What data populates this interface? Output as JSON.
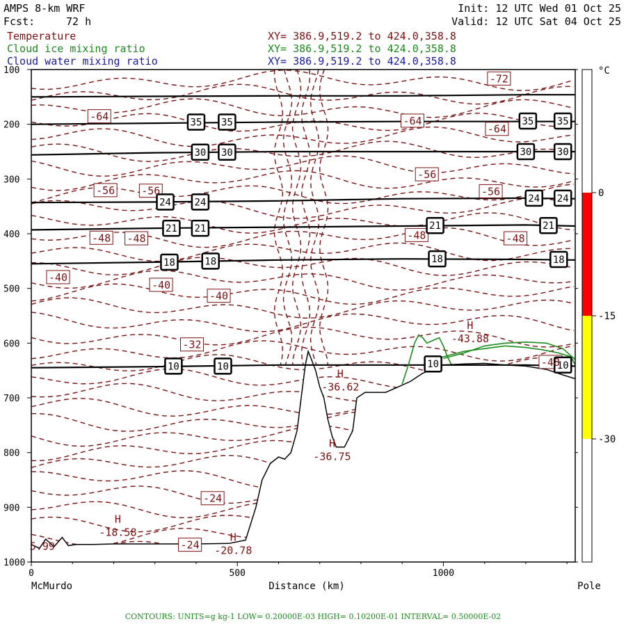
{
  "header": {
    "model": "AMPS 8-km WRF",
    "init": "Init: 12 UTC Wed 01 Oct 25",
    "fcst_label": "Fcst:",
    "fcst_value": "72 h",
    "valid": "Valid: 12 UTC Sat 04 Oct 25",
    "fields": [
      {
        "name": "Temperature",
        "xy": "XY= 386.9,519.2 to 424.0,358.8",
        "color": "#7a1010"
      },
      {
        "name": "Cloud ice mixing ratio",
        "xy": "XY= 386.9,519.2 to 424.0,358.8",
        "color": "#1a8a1a"
      },
      {
        "name": "Cloud water mixing ratio",
        "xy": "XY= 386.9,519.2 to 424.0,358.8",
        "color": "#1a1aa0"
      }
    ]
  },
  "footer": "CONTOURS:  UNITS=g kg-1  LOW= 0.20000E-03  HIGH= 0.10200E-01  INTERVAL=  0.50000E-02",
  "chart_data": {
    "type": "line",
    "xlabel": "Distance (km)",
    "ylabel": "",
    "xlim": [
      0,
      1320
    ],
    "ylim": [
      1000,
      100
    ],
    "x_ticks": [
      0,
      500,
      1000
    ],
    "y_ticks": [
      100,
      200,
      300,
      400,
      500,
      600,
      700,
      800,
      900,
      1000
    ],
    "x_endpoints": {
      "left": "McMurdo",
      "right": "Pole"
    },
    "colorbar": {
      "unit": "°C",
      "ticks": [
        0,
        -15,
        -30
      ],
      "bands": [
        {
          "from": 0,
          "to": -15,
          "color": "#ff0000"
        },
        {
          "from": -15,
          "to": -30,
          "color": "#ffff00"
        }
      ],
      "range": [
        15,
        -45
      ]
    },
    "terrain": {
      "x": [
        0,
        20,
        35,
        55,
        75,
        90,
        110,
        150,
        200,
        300,
        400,
        480,
        520,
        545,
        560,
        580,
        600,
        615,
        630,
        645,
        655,
        665,
        672,
        680,
        690,
        700,
        710,
        720,
        730,
        740,
        760,
        780,
        790,
        810,
        830,
        860,
        890,
        920,
        950,
        1000,
        1050,
        1100,
        1150,
        1200,
        1250,
        1290,
        1320
      ],
      "p": [
        968,
        975,
        958,
        972,
        955,
        970,
        968,
        968,
        967,
        967,
        967,
        966,
        960,
        900,
        850,
        820,
        808,
        812,
        800,
        760,
        700,
        640,
        615,
        630,
        650,
        680,
        700,
        740,
        770,
        790,
        790,
        760,
        700,
        690,
        690,
        690,
        680,
        670,
        655,
        640,
        638,
        637,
        640,
        642,
        648,
        658,
        665
      ]
    },
    "isentropes": [
      {
        "label": "35",
        "x": [
          0,
          300,
          600,
          900,
          1200,
          1320
        ],
        "p": [
          150,
          149,
          148,
          148,
          146,
          146
        ]
      },
      {
        "label": "35",
        "x": [
          0,
          300,
          600,
          900,
          1200,
          1320
        ],
        "p": [
          200,
          198,
          196,
          195,
          195,
          195
        ]
      },
      {
        "label": "30",
        "x": [
          0,
          300,
          600,
          900,
          1200,
          1320
        ],
        "p": [
          256,
          252,
          250,
          250,
          250,
          250
        ]
      },
      {
        "label": "24",
        "x": [
          0,
          300,
          600,
          900,
          1200,
          1320
        ],
        "p": [
          343,
          342,
          340,
          336,
          335,
          336
        ]
      },
      {
        "label": "21",
        "x": [
          0,
          300,
          600,
          900,
          1200,
          1320
        ],
        "p": [
          393,
          390,
          388,
          386,
          384,
          386
        ]
      },
      {
        "label": "18",
        "x": [
          0,
          300,
          600,
          900,
          1200,
          1320
        ],
        "p": [
          455,
          452,
          448,
          446,
          447,
          448
        ]
      },
      {
        "label": "10",
        "x": [
          0,
          300,
          600,
          700,
          1000,
          1200,
          1320
        ],
        "p": [
          645,
          643,
          640,
          640,
          640,
          640,
          642
        ]
      }
    ],
    "isentrope_labels": [
      {
        "text": "35",
        "x": [
          400,
          475,
          1205,
          1290
        ],
        "p": [
          196,
          196,
          194,
          194
        ]
      },
      {
        "text": "30",
        "x": [
          410,
          475,
          1200,
          1290
        ],
        "p": [
          251,
          251,
          250,
          250
        ]
      },
      {
        "text": "24",
        "x": [
          325,
          410,
          1220,
          1290
        ],
        "p": [
          342,
          342,
          335,
          335
        ]
      },
      {
        "text": "21",
        "x": [
          340,
          410,
          980,
          1255
        ],
        "p": [
          390,
          390,
          385,
          385
        ]
      },
      {
        "text": "18",
        "x": [
          335,
          435,
          985,
          1280
        ],
        "p": [
          452,
          450,
          446,
          447
        ]
      },
      {
        "text": "10",
        "x": [
          345,
          465,
          975,
          1290
        ],
        "p": [
          642,
          642,
          638,
          640
        ]
      }
    ],
    "temperature_labels": [
      {
        "text": "-72",
        "x": 1135,
        "p": 117
      },
      {
        "text": "-64",
        "x": 165,
        "p": 186
      },
      {
        "text": "-64",
        "x": 925,
        "p": 194
      },
      {
        "text": "-64",
        "x": 1130,
        "p": 209
      },
      {
        "text": "-56",
        "x": 960,
        "p": 292
      },
      {
        "text": "-56",
        "x": 180,
        "p": 321
      },
      {
        "text": "-56",
        "x": 290,
        "p": 322
      },
      {
        "text": "-56",
        "x": 1115,
        "p": 323
      },
      {
        "text": "-48",
        "x": 170,
        "p": 408
      },
      {
        "text": "-48",
        "x": 255,
        "p": 409
      },
      {
        "text": "-48",
        "x": 935,
        "p": 403
      },
      {
        "text": "-48",
        "x": 1175,
        "p": 409
      },
      {
        "text": "-40",
        "x": 65,
        "p": 480
      },
      {
        "text": "-40",
        "x": 315,
        "p": 494
      },
      {
        "text": "-40",
        "x": 455,
        "p": 514
      },
      {
        "text": "-32",
        "x": 390,
        "p": 603
      },
      {
        "text": "-24",
        "x": 440,
        "p": 884
      },
      {
        "text": "-24",
        "x": 385,
        "p": 969
      },
      {
        "text": "-48",
        "x": 1260,
        "p": 635
      }
    ],
    "highs": [
      {
        "label": "H",
        "value": "-18.58",
        "x": 210,
        "p": 936
      },
      {
        "label": "H",
        "value": "-20.78",
        "x": 490,
        "p": 969
      },
      {
        "label": "H",
        "value": "-36.62",
        "x": 750,
        "p": 670
      },
      {
        "label": "H",
        "value": "-36.75",
        "x": 730,
        "p": 797
      },
      {
        "label": "H",
        "value": "-43.88",
        "x": 1065,
        "p": 582
      }
    ],
    "corner_value": {
      "text": "5.99",
      "x": 30,
      "p": 955
    },
    "cloud_ice_contours": [
      {
        "x": [
          900,
          915,
          930,
          940,
          950,
          960,
          975,
          990,
          1000,
          1010,
          1020
        ],
        "p": [
          675,
          640,
          600,
          585,
          590,
          600,
          595,
          590,
          605,
          625,
          640
        ]
      },
      {
        "x": [
          960,
          1000,
          1050,
          1100,
          1150,
          1200,
          1240,
          1280,
          1310,
          1320
        ],
        "p": [
          635,
          625,
          615,
          610,
          605,
          608,
          612,
          618,
          625,
          640
        ]
      },
      {
        "x": [
          1000,
          1050,
          1100,
          1150,
          1200,
          1250,
          1290,
          1320
        ],
        "p": [
          628,
          618,
          605,
          600,
          598,
          600,
          610,
          630
        ]
      }
    ]
  }
}
